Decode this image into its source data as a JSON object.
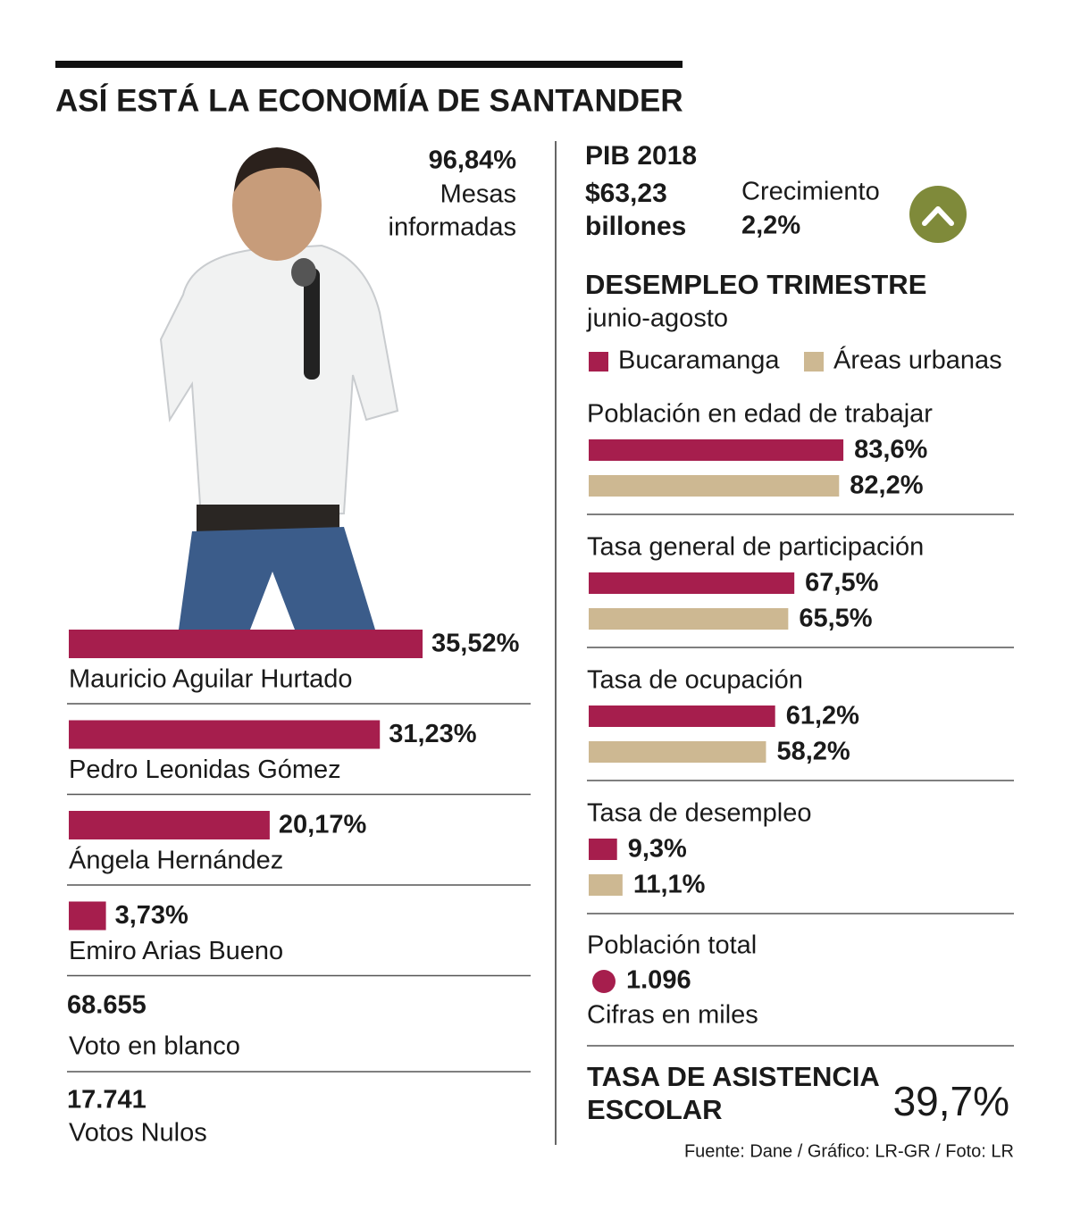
{
  "title": "ASÍ ESTÁ LA ECONOMÍA DE SANTANDER",
  "mesas": {
    "value": "96,84%",
    "label": [
      "Mesas",
      "informadas"
    ]
  },
  "votes": [
    {
      "value": "68.655",
      "label": "Voto en blanco"
    },
    {
      "value": "17.741",
      "label": "Votos Nulos"
    }
  ],
  "pib": {
    "title": "PIB 2018",
    "amount": [
      "$63,23",
      "billones"
    ],
    "growth_label": "Crecimiento",
    "growth": "2,2%"
  },
  "poblacion": {
    "label": "Población total",
    "value": "1.096",
    "note": "Cifras en miles"
  },
  "asistencia": {
    "label": [
      "TASA DE ASISTENCIA",
      "ESCOLAR"
    ],
    "value": "39,7%"
  },
  "source": "Fuente: Dane / Gráfico: LR-GR / Foto: LR",
  "chart_data": [
    {
      "type": "hbar",
      "categories": [
        "Mauricio Aguilar Hurtado",
        "Pedro Leonidas Gómez",
        "Ángela Hernández",
        "Emiro Arias Bueno"
      ],
      "values": [
        35.52,
        31.23,
        20.17,
        3.73
      ],
      "value_labels": [
        "35,52%",
        "31,23%",
        "20,17%",
        "3,73%"
      ],
      "color": "#a61e4d",
      "xlim": [
        0,
        40
      ]
    },
    {
      "type": "hbar",
      "title": "DESEMPLEO TRIMESTRE",
      "subtitle": "junio-agosto",
      "categories": [
        "Población en edad de trabajar",
        "Tasa general de participación",
        "Tasa de ocupación",
        "Tasa de desempleo"
      ],
      "series": [
        {
          "name": "Bucaramanga",
          "color": "#a61e4d",
          "values": [
            83.6,
            67.5,
            61.2,
            9.3
          ],
          "value_labels": [
            "83,6%",
            "67,5%",
            "61,2%",
            "9,3%"
          ]
        },
        {
          "name": "Áreas urbanas",
          "color": "#cdb892",
          "values": [
            82.2,
            65.5,
            58.2,
            11.1
          ],
          "value_labels": [
            "82,2%",
            "65,5%",
            "58,2%",
            "11,1%"
          ]
        }
      ],
      "xlim": [
        0,
        100
      ]
    }
  ]
}
